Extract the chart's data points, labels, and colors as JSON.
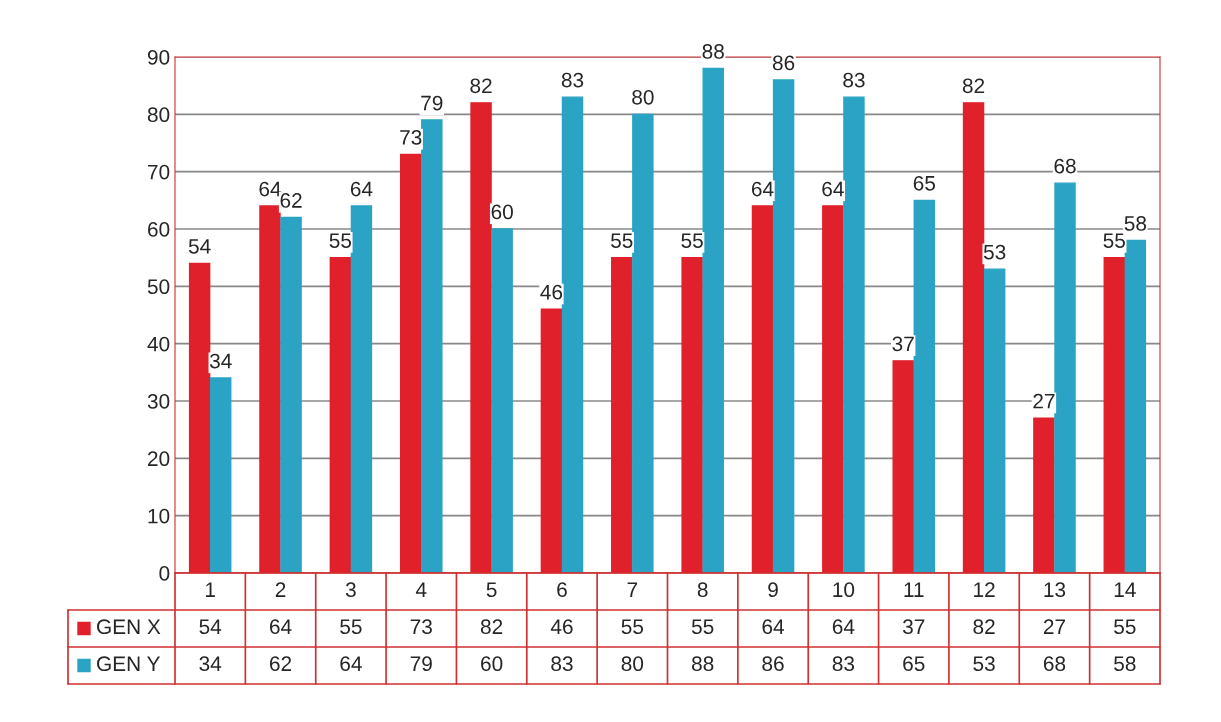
{
  "chart_data": {
    "type": "bar",
    "categories": [
      "1",
      "2",
      "3",
      "4",
      "5",
      "6",
      "7",
      "8",
      "9",
      "10",
      "11",
      "12",
      "13",
      "14"
    ],
    "series": [
      {
        "name": "GEN X",
        "color": "#e0202a",
        "values": [
          54,
          64,
          55,
          73,
          82,
          46,
          55,
          55,
          64,
          64,
          37,
          82,
          27,
          55
        ]
      },
      {
        "name": "GEN Y",
        "color": "#2aa3c4",
        "values": [
          34,
          62,
          64,
          79,
          60,
          83,
          80,
          88,
          86,
          83,
          65,
          53,
          68,
          58
        ]
      }
    ],
    "annotations": [
      {
        "text": "54",
        "x": "1",
        "y": 54
      },
      {
        "text": "64",
        "x": "2",
        "y": 64
      },
      {
        "text": "55",
        "x": "3",
        "y": 55
      },
      {
        "text": "73",
        "x": "4",
        "y": 73
      },
      {
        "text": "82",
        "x": "5",
        "y": 82
      },
      {
        "text": "46",
        "x": "6",
        "y": 46
      },
      {
        "text": "55",
        "x": "7",
        "y": 55
      },
      {
        "text": "55",
        "x": "8",
        "y": 55
      },
      {
        "text": "64",
        "x": "9",
        "y": 64
      },
      {
        "text": "64",
        "x": "10",
        "y": 64
      },
      {
        "text": "37",
        "x": "11",
        "y": 37
      },
      {
        "text": "82",
        "x": "12",
        "y": 82
      },
      {
        "text": "27",
        "x": "13",
        "y": 27
      },
      {
        "text": "55",
        "x": "14",
        "y": 55
      },
      {
        "text": "34",
        "x": "1",
        "y": 34
      },
      {
        "text": "62",
        "x": "2",
        "y": 62
      },
      {
        "text": "64",
        "x": "3",
        "y": 64
      },
      {
        "text": "79",
        "x": "4",
        "y": 79
      },
      {
        "text": "60",
        "x": "5",
        "y": 60
      },
      {
        "text": "83",
        "x": "6",
        "y": 83
      },
      {
        "text": "80",
        "x": "7",
        "y": 80
      },
      {
        "text": "88",
        "x": "8",
        "y": 88
      },
      {
        "text": "86",
        "x": "9",
        "y": 86
      },
      {
        "text": "83",
        "x": "10",
        "y": 83
      },
      {
        "text": "65",
        "x": "11",
        "y": 65
      },
      {
        "text": "53",
        "x": "12",
        "y": 53
      },
      {
        "text": "68",
        "x": "13",
        "y": 68
      },
      {
        "text": "58",
        "x": "14",
        "y": 58
      }
    ],
    "ylim": [
      0,
      90
    ],
    "yticks": [
      0,
      10,
      20,
      30,
      40,
      50,
      60,
      70,
      80,
      90
    ],
    "grid": "y",
    "data_labels": true,
    "legend": "bottom"
  }
}
